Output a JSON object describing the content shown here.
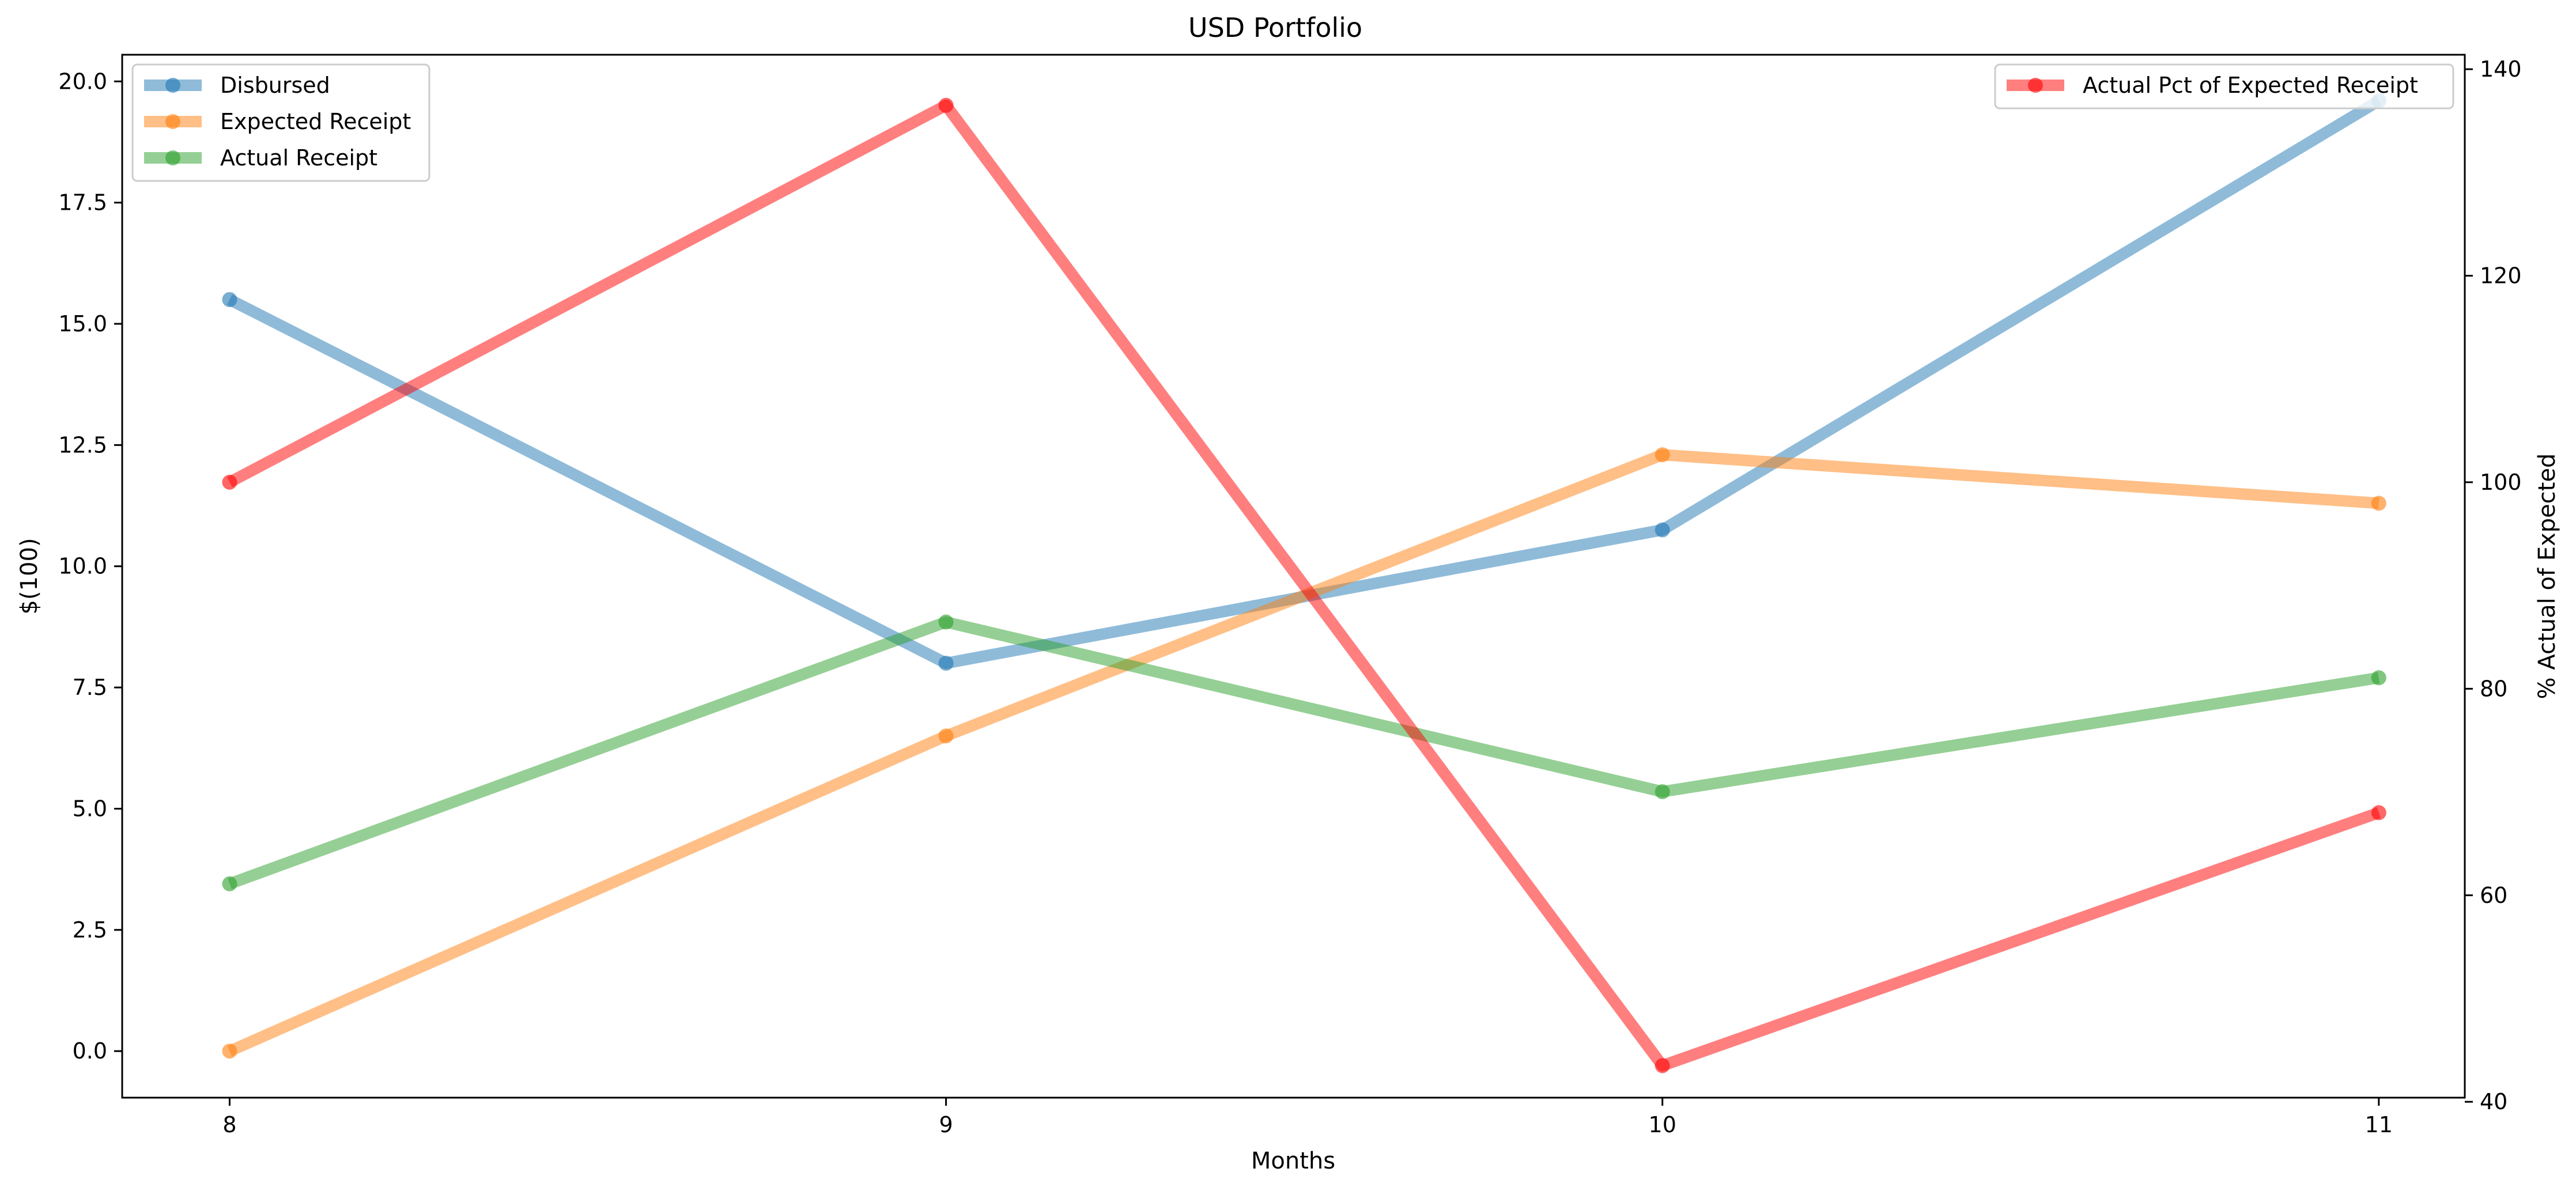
{
  "chart_data": {
    "type": "line",
    "title": "USD Portfolio",
    "xlabel": "Months",
    "ylabel": "$(100)",
    "ylabel_right": "% Actual of Expected",
    "x": [
      8,
      9,
      10,
      11
    ],
    "xlim": [
      7.85,
      11.12
    ],
    "ylim": [
      -0.96,
      20.55
    ],
    "ylim_right": [
      40.4,
      141.4
    ],
    "x_ticks": [
      "8",
      "9",
      "10",
      "11"
    ],
    "y_ticks": [
      "0.0",
      "2.5",
      "5.0",
      "7.5",
      "10.0",
      "12.5",
      "15.0",
      "17.5",
      "20.0"
    ],
    "y_ticks_right": [
      "40",
      "60",
      "80",
      "100",
      "120",
      "140"
    ],
    "grid": false,
    "legend_left_placement": "top-left",
    "legend_right_placement": "top-right",
    "series": [
      {
        "name": "Disbursed",
        "axis": "left",
        "color": "#1f77b4",
        "values": [
          15.5,
          8.0,
          10.75,
          19.6
        ]
      },
      {
        "name": "Expected Receipt",
        "axis": "left",
        "color": "#ff7f0e",
        "values": [
          0.0,
          6.5,
          12.3,
          11.3
        ]
      },
      {
        "name": "Actual Receipt",
        "axis": "left",
        "color": "#2ca02c",
        "values": [
          3.45,
          8.85,
          5.35,
          7.7
        ]
      },
      {
        "name": "Actual Pct of Expected Receipt",
        "axis": "right",
        "color": "#ff0000",
        "values": [
          100.0,
          136.5,
          43.5,
          68.0
        ]
      }
    ]
  }
}
